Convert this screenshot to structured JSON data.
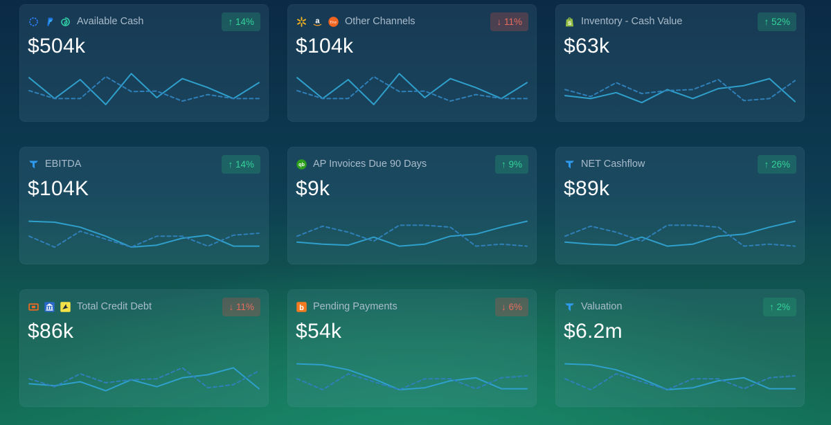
{
  "colors": {
    "solid_line": "#2f9fcc",
    "dashed_line": "#2f7fb8",
    "trend_up": "#34d29a",
    "trend_down": "#e46d5e"
  },
  "cards": [
    {
      "title": "Available Cash",
      "value": "$504k",
      "badge": "↑ 14%",
      "trend": "up",
      "icons": [
        "circle-integration-icon",
        "paypal-icon",
        "swirl-integration-icon"
      ],
      "chart_data": {
        "type": "line",
        "ylim": [
          0,
          100
        ],
        "series": [
          {
            "style": "solid",
            "values": [
              72,
              30,
              68,
              18,
              80,
              32,
              70,
              52,
              30,
              62
            ]
          },
          {
            "style": "dashed",
            "values": [
              46,
              30,
              30,
              74,
              44,
              45,
              25,
              38,
              30,
              30
            ]
          }
        ]
      }
    },
    {
      "title": "Other Channels",
      "value": "$104k",
      "badge": "↓ 11%",
      "trend": "down",
      "icons": [
        "walmart-icon",
        "amazon-icon",
        "etsy-icon"
      ],
      "chart_data": {
        "type": "line",
        "ylim": [
          0,
          100
        ],
        "series": [
          {
            "style": "solid",
            "values": [
              72,
              30,
              68,
              18,
              80,
              32,
              70,
              52,
              30,
              62
            ]
          },
          {
            "style": "dashed",
            "values": [
              46,
              30,
              30,
              74,
              44,
              45,
              25,
              38,
              30,
              30
            ]
          }
        ]
      }
    },
    {
      "title": "Inventory - Cash Value",
      "value": "$63k",
      "badge": "↑ 52%",
      "trend": "up",
      "icons": [
        "shopify-icon"
      ],
      "chart_data": {
        "type": "line",
        "ylim": [
          0,
          100
        ],
        "series": [
          {
            "style": "solid",
            "values": [
              36,
              30,
              42,
              22,
              48,
              30,
              50,
              56,
              70,
              24
            ]
          },
          {
            "style": "dashed",
            "values": [
              48,
              34,
              62,
              40,
              46,
              48,
              68,
              26,
              30,
              66
            ]
          }
        ]
      }
    },
    {
      "title": "EBITDA",
      "value": "$104K",
      "badge": "↑ 14%",
      "trend": "up",
      "icons": [
        "trendy-t-icon"
      ],
      "chart_data": {
        "type": "line",
        "ylim": [
          0,
          100
        ],
        "series": [
          {
            "style": "solid",
            "values": [
              70,
              68,
              58,
              40,
              18,
              22,
              36,
              42,
              20,
              20
            ]
          },
          {
            "style": "dashed",
            "values": [
              40,
              18,
              50,
              34,
              18,
              40,
              40,
              20,
              42,
              46
            ]
          }
        ]
      }
    },
    {
      "title": "AP Invoices Due 90 Days",
      "value": "$9k",
      "badge": "↑ 9%",
      "trend": "up",
      "icons": [
        "quickbooks-icon"
      ],
      "chart_data": {
        "type": "line",
        "ylim": [
          0,
          100
        ],
        "series": [
          {
            "style": "solid",
            "values": [
              28,
              24,
              22,
              38,
              20,
              24,
              40,
              44,
              58,
              70
            ]
          },
          {
            "style": "dashed",
            "values": [
              40,
              60,
              48,
              30,
              62,
              62,
              58,
              20,
              24,
              20
            ]
          }
        ]
      }
    },
    {
      "title": "NET Cashflow",
      "value": "$89k",
      "badge": "↑ 26%",
      "trend": "up",
      "icons": [
        "trendy-t-icon"
      ],
      "chart_data": {
        "type": "line",
        "ylim": [
          0,
          100
        ],
        "series": [
          {
            "style": "solid",
            "values": [
              28,
              24,
              22,
              38,
              20,
              24,
              40,
              44,
              58,
              70
            ]
          },
          {
            "style": "dashed",
            "values": [
              40,
              60,
              48,
              30,
              62,
              62,
              58,
              20,
              24,
              20
            ]
          }
        ]
      }
    },
    {
      "title": "Total Credit Debt",
      "value": "$86k",
      "badge": "↓ 11%",
      "trend": "down",
      "icons": [
        "credit-card-orange-icon",
        "bank-blue-icon",
        "bird-yellow-icon"
      ],
      "chart_data": {
        "type": "line",
        "ylim": [
          0,
          100
        ],
        "series": [
          {
            "style": "solid",
            "values": [
              30,
              26,
              34,
              16,
              38,
              24,
              42,
              48,
              62,
              20
            ]
          },
          {
            "style": "dashed",
            "values": [
              40,
              24,
              50,
              32,
              38,
              40,
              62,
              22,
              28,
              56
            ]
          }
        ]
      }
    },
    {
      "title": "Pending Payments",
      "value": "$54k",
      "badge": "↓ 6%",
      "trend": "down",
      "icons": [
        "bill-com-icon"
      ],
      "chart_data": {
        "type": "line",
        "ylim": [
          0,
          100
        ],
        "series": [
          {
            "style": "solid",
            "values": [
              70,
              68,
              58,
              40,
              18,
              22,
              36,
              42,
              20,
              20
            ]
          },
          {
            "style": "dashed",
            "values": [
              40,
              18,
              50,
              34,
              18,
              40,
              40,
              20,
              42,
              46
            ]
          }
        ]
      }
    },
    {
      "title": "Valuation",
      "value": "$6.2m",
      "badge": "↑ 2%",
      "trend": "up",
      "icons": [
        "trendy-t-icon"
      ],
      "chart_data": {
        "type": "line",
        "ylim": [
          0,
          100
        ],
        "series": [
          {
            "style": "solid",
            "values": [
              70,
              68,
              58,
              40,
              18,
              22,
              36,
              42,
              20,
              20
            ]
          },
          {
            "style": "dashed",
            "values": [
              40,
              18,
              50,
              34,
              18,
              40,
              40,
              20,
              42,
              46
            ]
          }
        ]
      }
    }
  ]
}
